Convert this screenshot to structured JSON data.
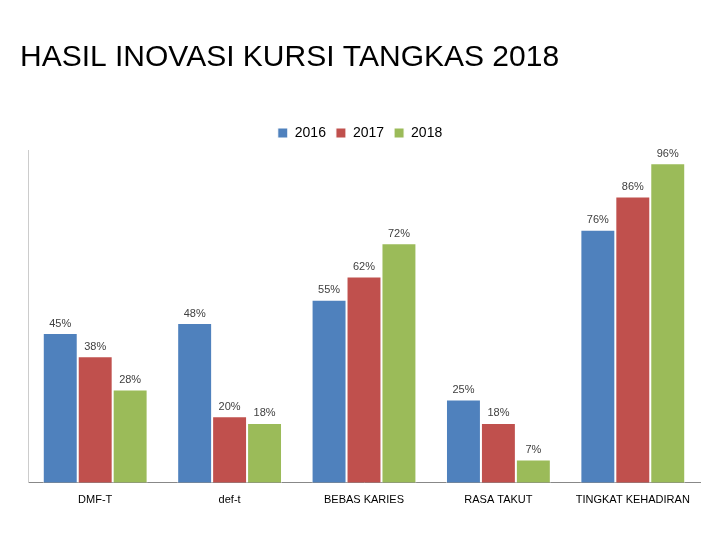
{
  "chart_data": {
    "type": "bar",
    "title": "HASIL INOVASI KURSI TANGKAS 2018",
    "categories": [
      "DMF-T",
      "def-t",
      "BEBAS KARIES",
      "RASA TAKUT",
      "TINGKAT KEHADIRAN"
    ],
    "series": [
      {
        "name": "2016",
        "color": "#4f81bd",
        "values": [
          45,
          48,
          55,
          25,
          76
        ],
        "value_labels": [
          "45%",
          "48%",
          "55%",
          "25%",
          "76%"
        ]
      },
      {
        "name": "2017",
        "color": "#c0504d",
        "values": [
          38,
          20,
          62,
          18,
          86
        ],
        "value_labels": [
          "38%",
          "20%",
          "62%",
          "18%",
          "86%"
        ]
      },
      {
        "name": "2018",
        "color": "#9bbb59",
        "values": [
          28,
          18,
          72,
          7,
          96
        ],
        "value_labels": [
          "28%",
          "18%",
          "72%",
          "7%",
          "96%"
        ]
      }
    ],
    "ylim": [
      0,
      100
    ],
    "grid": false,
    "legend": "top",
    "data_labels": true,
    "tick_labels": "x"
  }
}
